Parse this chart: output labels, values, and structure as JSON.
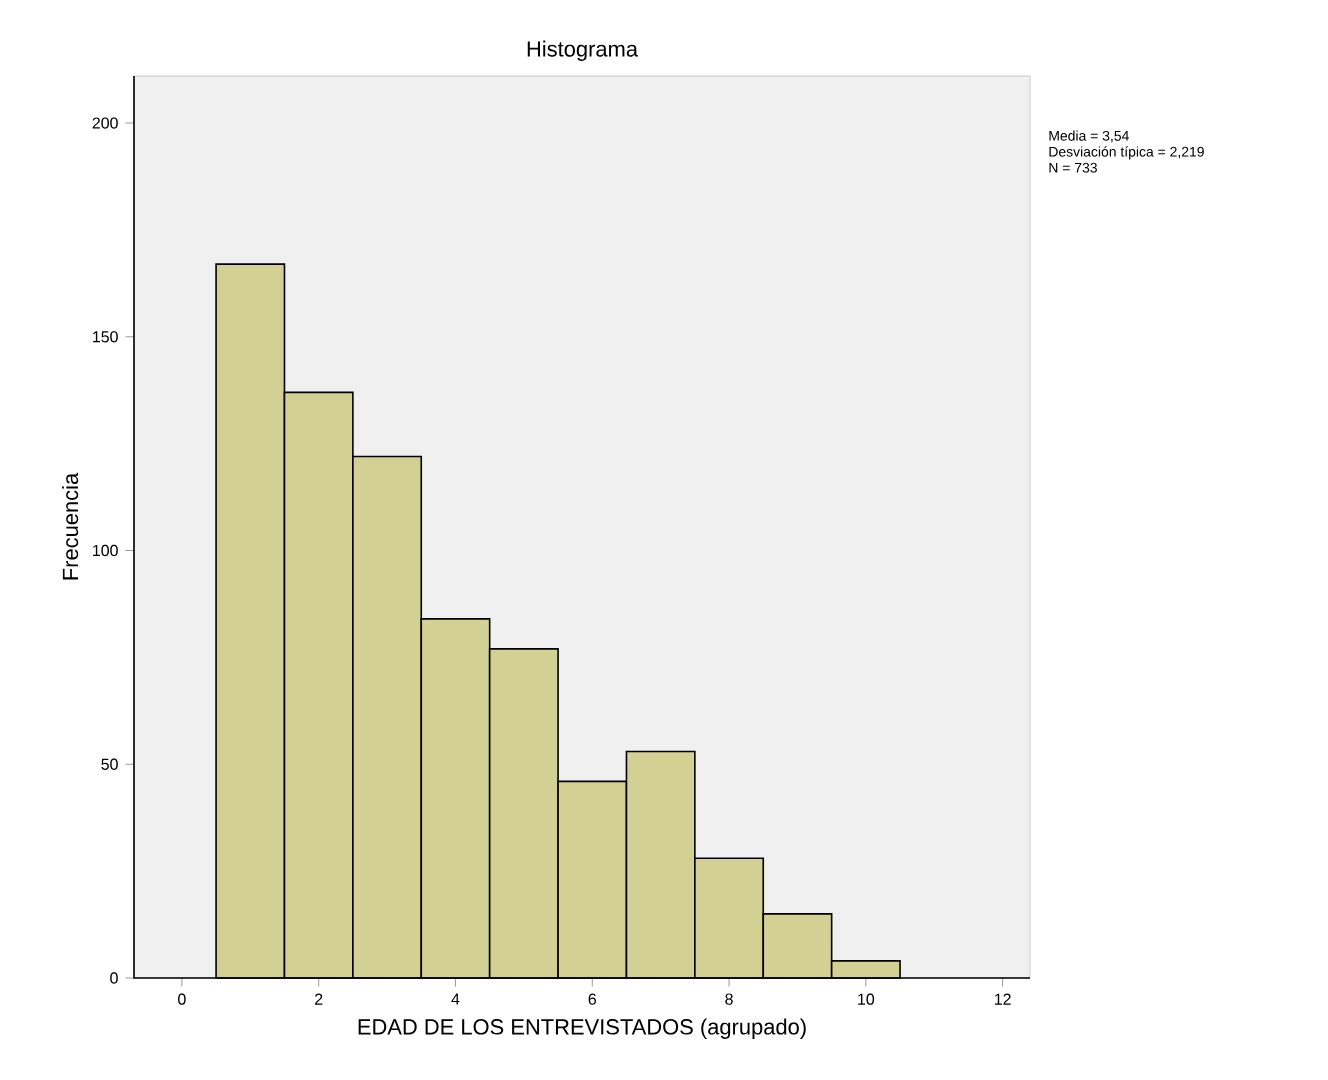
{
  "chart_data": {
    "type": "histogram",
    "title": "Histograma",
    "xlabel": "EDAD DE LOS ENTREVISTADOS (agrupado)",
    "ylabel": "Frecuencia",
    "bins": [
      0.5,
      1.5,
      2.5,
      3.5,
      4.5,
      5.5,
      6.5,
      7.5,
      8.5,
      9.5,
      10.5
    ],
    "values": [
      167,
      137,
      122,
      84,
      77,
      46,
      53,
      28,
      15,
      4
    ],
    "color": "#d3d093",
    "xlim": [
      -0.7,
      12.4
    ],
    "ylim": [
      0,
      211
    ],
    "xticks": [
      0,
      2,
      4,
      6,
      8,
      10,
      12
    ],
    "yticks": [
      0,
      50,
      100,
      150,
      200
    ],
    "annotations": [
      "Media = 3,54",
      "Desviación típica = 2,219",
      "N = 733"
    ],
    "grid": false
  }
}
